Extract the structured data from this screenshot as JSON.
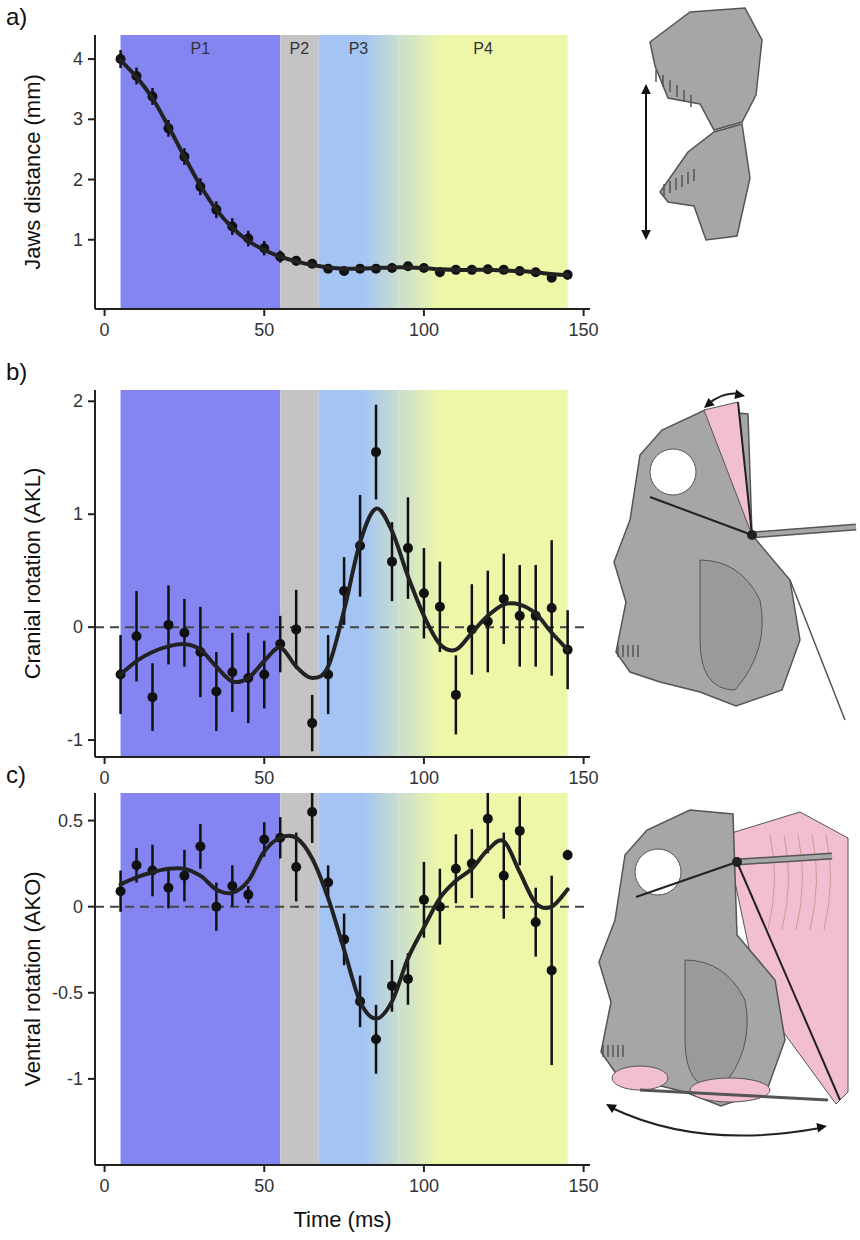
{
  "chart_data": [
    {
      "type": "line",
      "panel": "a)",
      "y_label": "Jaws distance (mm)",
      "xlim": [
        -3,
        152
      ],
      "xticks": [
        0,
        50,
        100,
        150
      ],
      "ylim": [
        -0.15,
        4.4
      ],
      "yticks": [
        1,
        2,
        3,
        4
      ],
      "phases": [
        {
          "label": "P1",
          "start": 5,
          "end": 55,
          "color": "#8585f2"
        },
        {
          "label": "P2",
          "start": 55,
          "end": 67,
          "color": "#c4c4c4"
        },
        {
          "label": "P3",
          "start": 67,
          "end": 92,
          "color": "#a4c4f4"
        },
        {
          "label": "P4",
          "start": 92,
          "end": 145,
          "color": "#eef7a8"
        }
      ],
      "x": [
        5,
        10,
        15,
        20,
        25,
        30,
        35,
        40,
        45,
        50,
        55,
        60,
        65,
        70,
        75,
        80,
        85,
        90,
        95,
        100,
        105,
        110,
        115,
        120,
        125,
        130,
        135,
        140,
        145
      ],
      "series": [
        {
          "type": "scatter",
          "color": "#111111",
          "marker": "circle",
          "values": [
            4.0,
            3.72,
            3.38,
            2.85,
            2.38,
            1.88,
            1.5,
            1.22,
            1.02,
            0.86,
            0.72,
            0.65,
            0.6,
            0.52,
            0.48,
            0.52,
            0.52,
            0.53,
            0.56,
            0.53,
            0.46,
            0.5,
            0.5,
            0.51,
            0.5,
            0.48,
            0.46,
            0.37,
            0.42
          ],
          "errors": [
            0.15,
            0.14,
            0.14,
            0.14,
            0.14,
            0.14,
            0.14,
            0.14,
            0.13,
            0.12,
            0.1,
            0.08,
            0.07,
            0.06,
            0.06,
            0.06,
            0.06,
            0.06,
            0.06,
            0.06,
            0.06,
            0.06,
            0.06,
            0.06,
            0.06,
            0.06,
            0.06,
            0.06,
            0.08
          ]
        },
        {
          "type": "line",
          "color": "#222222",
          "line_style": "solid",
          "values": [
            3.98,
            3.7,
            3.35,
            2.88,
            2.38,
            1.9,
            1.5,
            1.2,
            0.98,
            0.83,
            0.72,
            0.64,
            0.58,
            0.54,
            0.52,
            0.52,
            0.53,
            0.54,
            0.54,
            0.53,
            0.51,
            0.5,
            0.5,
            0.5,
            0.49,
            0.48,
            0.46,
            0.43,
            0.41
          ]
        }
      ]
    },
    {
      "type": "line",
      "panel": "b)",
      "y_label": "Cranial rotation (AKL)",
      "xlim": [
        -3,
        152
      ],
      "xticks": [
        0,
        50,
        100,
        150
      ],
      "ylim": [
        -1.15,
        2.1
      ],
      "yticks": [
        -1,
        0,
        1,
        2
      ],
      "reference_line": 0,
      "phases": [
        {
          "start": 5,
          "end": 55,
          "color": "#8585f2"
        },
        {
          "start": 55,
          "end": 67,
          "color": "#c4c4c4"
        },
        {
          "start": 67,
          "end": 92,
          "color": "#a4c4f4"
        },
        {
          "start": 92,
          "end": 145,
          "color": "#eef7a8"
        }
      ],
      "x": [
        5,
        10,
        15,
        20,
        25,
        30,
        35,
        40,
        45,
        50,
        55,
        60,
        65,
        70,
        75,
        80,
        85,
        90,
        95,
        100,
        105,
        110,
        115,
        120,
        125,
        130,
        135,
        140,
        145
      ],
      "series": [
        {
          "type": "scatter",
          "color": "#111111",
          "marker": "circle",
          "values": [
            -0.42,
            -0.08,
            -0.62,
            0.02,
            -0.05,
            -0.22,
            -0.57,
            -0.4,
            -0.45,
            -0.42,
            -0.15,
            -0.02,
            -0.85,
            -0.42,
            0.32,
            0.72,
            1.55,
            0.58,
            0.7,
            0.3,
            0.18,
            -0.6,
            -0.02,
            0.05,
            0.25,
            0.1,
            0.1,
            0.17,
            -0.2
          ],
          "errors": [
            0.35,
            0.4,
            0.3,
            0.35,
            0.3,
            0.4,
            0.35,
            0.35,
            0.4,
            0.3,
            0.25,
            0.35,
            0.25,
            0.35,
            0.3,
            0.45,
            0.42,
            0.35,
            0.45,
            0.4,
            0.4,
            0.35,
            0.4,
            0.45,
            0.4,
            0.45,
            0.45,
            0.6,
            0.35
          ]
        },
        {
          "type": "line",
          "color": "#222222",
          "line_style": "solid",
          "values": [
            -0.42,
            -0.3,
            -0.22,
            -0.17,
            -0.15,
            -0.2,
            -0.35,
            -0.48,
            -0.45,
            -0.3,
            -0.18,
            -0.35,
            -0.45,
            -0.35,
            0.15,
            0.75,
            1.05,
            0.85,
            0.45,
            0.1,
            -0.15,
            -0.2,
            -0.05,
            0.1,
            0.2,
            0.2,
            0.12,
            -0.05,
            -0.2
          ]
        }
      ]
    },
    {
      "type": "line",
      "panel": "c)",
      "y_label": "Ventral rotation (AKO)",
      "x_label": "Time (ms)",
      "xlim": [
        -3,
        152
      ],
      "xticks": [
        0,
        50,
        100,
        150
      ],
      "ylim": [
        -1.5,
        0.66
      ],
      "yticks": [
        -1,
        -0.5,
        0,
        0.5
      ],
      "reference_line": 0,
      "phases": [
        {
          "start": 5,
          "end": 55,
          "color": "#8585f2"
        },
        {
          "start": 55,
          "end": 67,
          "color": "#c4c4c4"
        },
        {
          "start": 67,
          "end": 92,
          "color": "#a4c4f4"
        },
        {
          "start": 92,
          "end": 145,
          "color": "#eef7a8"
        }
      ],
      "x": [
        5,
        10,
        15,
        20,
        25,
        30,
        35,
        40,
        45,
        50,
        55,
        60,
        65,
        70,
        75,
        80,
        85,
        90,
        95,
        100,
        105,
        110,
        115,
        120,
        125,
        130,
        135,
        140,
        145
      ],
      "series": [
        {
          "type": "scatter",
          "color": "#111111",
          "marker": "circle",
          "values": [
            0.09,
            0.24,
            0.21,
            0.11,
            0.18,
            0.35,
            0.0,
            0.12,
            0.07,
            0.39,
            0.4,
            0.23,
            0.55,
            0.14,
            -0.19,
            -0.55,
            -0.77,
            -0.46,
            -0.42,
            0.04,
            0.0,
            0.22,
            0.25,
            0.51,
            0.18,
            0.44,
            -0.09,
            -0.37,
            0.3
          ],
          "errors": [
            0.12,
            0.1,
            0.15,
            0.12,
            0.15,
            0.13,
            0.14,
            0.12,
            0.05,
            0.1,
            0.12,
            0.2,
            0.18,
            0.1,
            0.15,
            0.15,
            0.2,
            0.15,
            0.15,
            0.22,
            0.22,
            0.2,
            0.2,
            0.2,
            0.25,
            0.2,
            0.2,
            0.55,
            0.03
          ]
        },
        {
          "type": "line",
          "color": "#222222",
          "line_style": "solid",
          "values": [
            0.13,
            0.17,
            0.2,
            0.22,
            0.22,
            0.18,
            0.1,
            0.08,
            0.15,
            0.32,
            0.4,
            0.4,
            0.28,
            0.05,
            -0.25,
            -0.55,
            -0.65,
            -0.55,
            -0.3,
            -0.12,
            0.05,
            0.15,
            0.22,
            0.33,
            0.38,
            0.2,
            0.02,
            0.0,
            0.1
          ]
        }
      ]
    }
  ]
}
